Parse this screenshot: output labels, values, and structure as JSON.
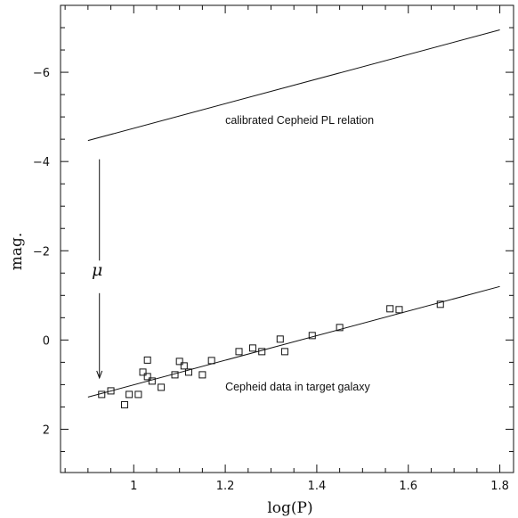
{
  "chart_data": {
    "type": "scatter",
    "title": "",
    "xlabel": "log(P)",
    "ylabel": "mag.",
    "xlim": [
      0.84,
      1.83
    ],
    "ylim": [
      2.97,
      -7.5
    ],
    "y_inverted": true,
    "x_ticks": [
      1,
      1.2,
      1.4,
      1.6,
      1.8
    ],
    "x_tick_labels": [
      "1",
      "1.2",
      "1.4",
      "1.6",
      "1.8"
    ],
    "y_ticks": [
      -6,
      -4,
      -2,
      0,
      2
    ],
    "y_tick_labels": [
      "−6",
      "−4",
      "−2",
      "0",
      "2"
    ],
    "grid": false,
    "lines": [
      {
        "name": "calibrated Cepheid PL relation",
        "x": [
          0.9,
          1.8
        ],
        "y": [
          -4.47,
          -6.95
        ]
      },
      {
        "name": "Cepheid data in target galaxy",
        "x": [
          0.9,
          1.8
        ],
        "y": [
          1.28,
          -1.2
        ]
      }
    ],
    "points": [
      {
        "x": 0.93,
        "y": 1.22
      },
      {
        "x": 0.95,
        "y": 1.14
      },
      {
        "x": 0.98,
        "y": 1.45
      },
      {
        "x": 0.99,
        "y": 1.22
      },
      {
        "x": 1.01,
        "y": 1.22
      },
      {
        "x": 1.02,
        "y": 0.72
      },
      {
        "x": 1.03,
        "y": 0.82
      },
      {
        "x": 1.03,
        "y": 0.45
      },
      {
        "x": 1.04,
        "y": 0.92
      },
      {
        "x": 1.06,
        "y": 1.06
      },
      {
        "x": 1.09,
        "y": 0.78
      },
      {
        "x": 1.1,
        "y": 0.48
      },
      {
        "x": 1.11,
        "y": 0.58
      },
      {
        "x": 1.12,
        "y": 0.72
      },
      {
        "x": 1.15,
        "y": 0.78
      },
      {
        "x": 1.17,
        "y": 0.46
      },
      {
        "x": 1.23,
        "y": 0.26
      },
      {
        "x": 1.26,
        "y": 0.18
      },
      {
        "x": 1.28,
        "y": 0.26
      },
      {
        "x": 1.32,
        "y": -0.02
      },
      {
        "x": 1.33,
        "y": 0.26
      },
      {
        "x": 1.39,
        "y": -0.1
      },
      {
        "x": 1.45,
        "y": -0.28
      },
      {
        "x": 1.56,
        "y": -0.7
      },
      {
        "x": 1.58,
        "y": -0.68
      },
      {
        "x": 1.67,
        "y": -0.8
      }
    ],
    "annotations": [
      {
        "text": "calibrated Cepheid PL relation",
        "x": 1.2,
        "y": -4.84
      },
      {
        "text": "Cepheid data in target galaxy",
        "x": 1.2,
        "y": 1.13
      },
      {
        "text": "μ",
        "x": 0.92,
        "y": -1.45
      }
    ],
    "arrow": {
      "x": 0.925,
      "from_y": -4.05,
      "to_y": 0.85
    }
  }
}
